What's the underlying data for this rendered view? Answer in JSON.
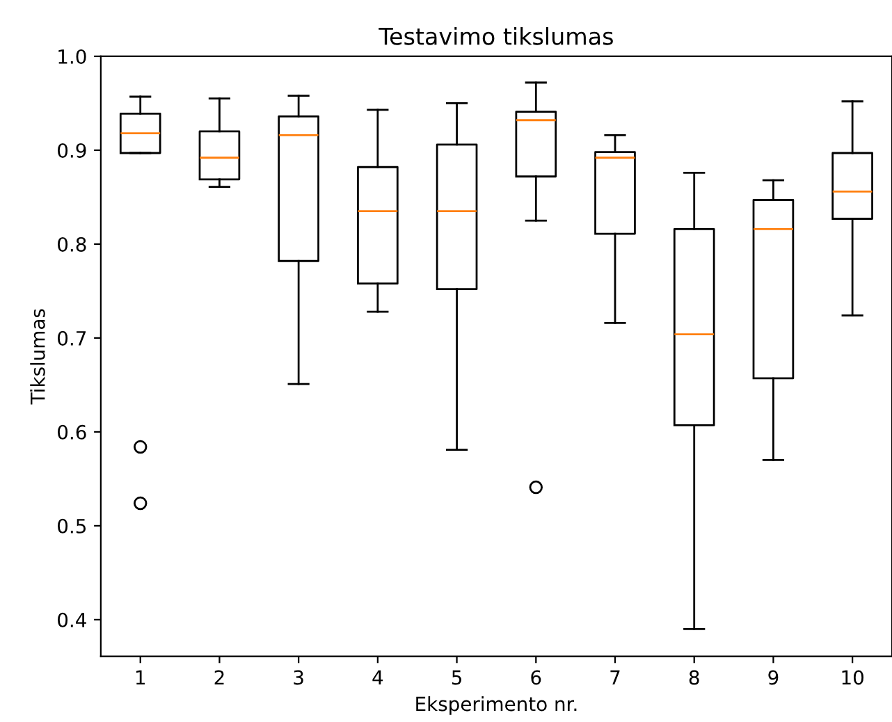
{
  "chart_data": {
    "type": "box",
    "title": "Testavimo tikslumas",
    "xlabel": "Eksperimento nr.",
    "ylabel": "Tikslumas",
    "categories": [
      "1",
      "2",
      "3",
      "4",
      "5",
      "6",
      "7",
      "8",
      "9",
      "10"
    ],
    "boxes": [
      {
        "low": 0.897,
        "q1": 0.897,
        "median": 0.918,
        "q3": 0.939,
        "high": 0.957,
        "outliers": [
          0.584,
          0.524
        ]
      },
      {
        "low": 0.861,
        "q1": 0.869,
        "median": 0.892,
        "q3": 0.92,
        "high": 0.955
      },
      {
        "low": 0.651,
        "q1": 0.782,
        "median": 0.916,
        "q3": 0.936,
        "high": 0.958
      },
      {
        "low": 0.728,
        "q1": 0.758,
        "median": 0.835,
        "q3": 0.882,
        "high": 0.943
      },
      {
        "low": 0.581,
        "q1": 0.752,
        "median": 0.835,
        "q3": 0.906,
        "high": 0.95
      },
      {
        "low": 0.825,
        "q1": 0.872,
        "median": 0.932,
        "q3": 0.941,
        "high": 0.972,
        "outliers": [
          0.541
        ]
      },
      {
        "low": 0.716,
        "q1": 0.811,
        "median": 0.892,
        "q3": 0.898,
        "high": 0.916
      },
      {
        "low": 0.39,
        "q1": 0.607,
        "median": 0.704,
        "q3": 0.816,
        "high": 0.876
      },
      {
        "low": 0.57,
        "q1": 0.657,
        "median": 0.816,
        "q3": 0.847,
        "high": 0.868
      },
      {
        "low": 0.724,
        "q1": 0.827,
        "median": 0.856,
        "q3": 0.897,
        "high": 0.952
      }
    ],
    "ylim": [
      0.361,
      1.0
    ],
    "yticks": [
      0.4,
      0.5,
      0.6,
      0.7,
      0.8,
      0.9,
      {
        "value": 1.0,
        "label": "1.0"
      }
    ],
    "grid": false,
    "legend": false
  }
}
